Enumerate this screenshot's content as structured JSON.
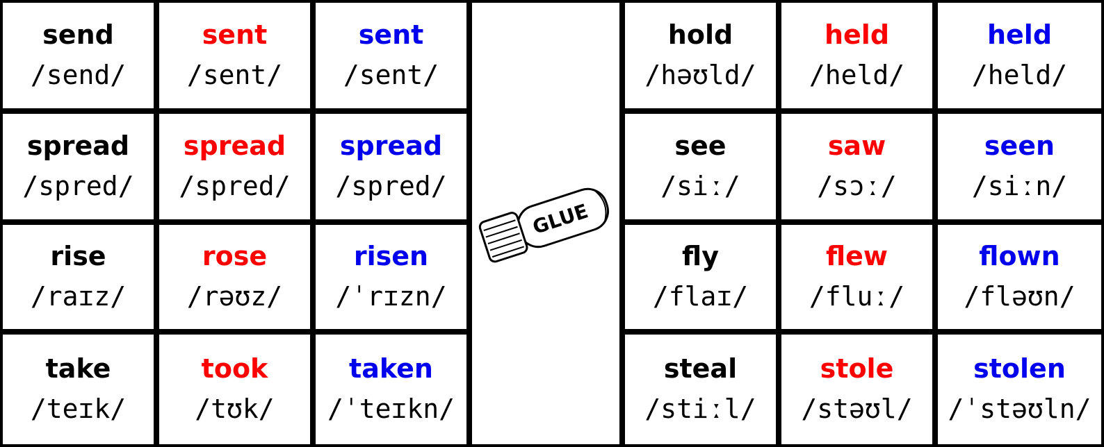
{
  "left": [
    [
      {
        "word": "send",
        "ipa": "/send/"
      },
      {
        "word": "sent",
        "ipa": "/sent/"
      },
      {
        "word": "sent",
        "ipa": "/sent/"
      }
    ],
    [
      {
        "word": "spread",
        "ipa": "/spred/"
      },
      {
        "word": "spread",
        "ipa": "/spred/"
      },
      {
        "word": "spread",
        "ipa": "/spred/"
      }
    ],
    [
      {
        "word": "rise",
        "ipa": "/raɪz/"
      },
      {
        "word": "rose",
        "ipa": "/rəʊz/"
      },
      {
        "word": "risen",
        "ipa": "/ˈrɪzn/"
      }
    ],
    [
      {
        "word": "take",
        "ipa": "/teɪk/"
      },
      {
        "word": "took",
        "ipa": "/tʊk/"
      },
      {
        "word": "taken",
        "ipa": "/ˈteɪkn/"
      }
    ]
  ],
  "right": [
    [
      {
        "word": "hold",
        "ipa": "/həʊld/"
      },
      {
        "word": "held",
        "ipa": "/held/"
      },
      {
        "word": "held",
        "ipa": "/held/"
      }
    ],
    [
      {
        "word": "see",
        "ipa": "/siː/"
      },
      {
        "word": "saw",
        "ipa": "/sɔː/"
      },
      {
        "word": "seen",
        "ipa": "/siːn/"
      }
    ],
    [
      {
        "word": "fly",
        "ipa": "/flaɪ/"
      },
      {
        "word": "flew",
        "ipa": "/fluː/"
      },
      {
        "word": "flown",
        "ipa": "/fləʊn/"
      }
    ],
    [
      {
        "word": "steal",
        "ipa": "/stiːl/"
      },
      {
        "word": "stole",
        "ipa": "/stəʊl/"
      },
      {
        "word": "stolen",
        "ipa": "/ˈstəʊln/"
      }
    ]
  ],
  "glue_label": "GLUE"
}
